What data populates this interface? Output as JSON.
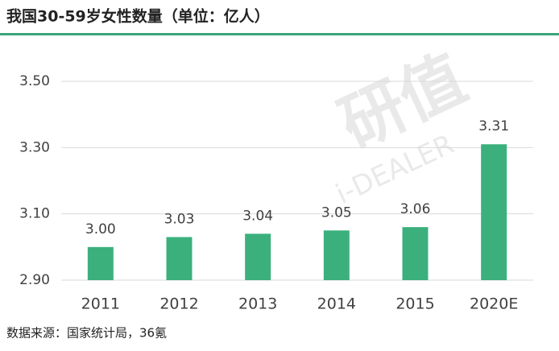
{
  "chart_data": {
    "type": "bar",
    "title": "我国30-59岁女性数量（单位：亿人）",
    "categories": [
      "2011",
      "2012",
      "2013",
      "2014",
      "2015",
      "2020E"
    ],
    "values": [
      3.0,
      3.03,
      3.04,
      3.05,
      3.06,
      3.31
    ],
    "value_labels": [
      "3.00",
      "3.03",
      "3.04",
      "3.05",
      "3.06",
      "3.31"
    ],
    "color": "#3bb07d",
    "ylim": [
      2.9,
      3.5
    ],
    "yticks": [
      {
        "value": 2.9,
        "label": "2.90"
      },
      {
        "value": 3.1,
        "label": "3.10"
      },
      {
        "value": 3.3,
        "label": "3.30"
      },
      {
        "value": 3.5,
        "label": "3.50"
      }
    ],
    "grid": true,
    "source": "数据来源：国家统计局，36氪",
    "watermark": [
      "研值",
      "i-DEALER"
    ]
  }
}
